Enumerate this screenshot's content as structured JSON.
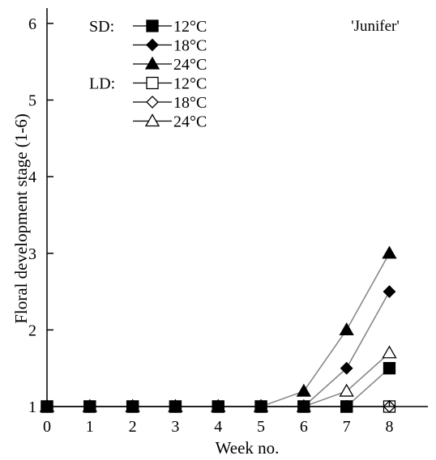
{
  "chart_data": {
    "type": "line",
    "title": "",
    "annotation": "'Junifer'",
    "xlabel": "Week no.",
    "ylabel": "Floral development stage (1-6)",
    "x": [
      0,
      1,
      2,
      3,
      4,
      5,
      6,
      7,
      8
    ],
    "xlim": [
      0,
      8.9
    ],
    "ylim": [
      1,
      6.2
    ],
    "xticks": [
      "0",
      "1",
      "2",
      "3",
      "4",
      "5",
      "6",
      "7",
      "8"
    ],
    "yticks": [
      "1",
      "2",
      "3",
      "4",
      "5",
      "6"
    ],
    "grid": false,
    "legend_position": "top-left",
    "legend_groups": [
      {
        "label": "SD:",
        "series": [
          0,
          1,
          2
        ]
      },
      {
        "label": "LD:",
        "series": [
          3,
          4,
          5
        ]
      }
    ],
    "series": [
      {
        "name": "12°C",
        "group": "SD",
        "marker": "square",
        "filled": true,
        "values": [
          1,
          1,
          1,
          1,
          1,
          1,
          1,
          1,
          1.5
        ]
      },
      {
        "name": "18°C",
        "group": "SD",
        "marker": "diamond",
        "filled": true,
        "values": [
          1,
          1,
          1,
          1,
          1,
          1,
          1,
          1.5,
          2.5
        ]
      },
      {
        "name": "24°C",
        "group": "SD",
        "marker": "triangle",
        "filled": true,
        "values": [
          1,
          1,
          1,
          1,
          1,
          1,
          1.2,
          2,
          3
        ]
      },
      {
        "name": "12°C",
        "group": "LD",
        "marker": "square",
        "filled": false,
        "values": [
          1,
          1,
          1,
          1,
          1,
          1,
          1,
          1,
          1
        ]
      },
      {
        "name": "18°C",
        "group": "LD",
        "marker": "diamond",
        "filled": false,
        "values": [
          1,
          1,
          1,
          1,
          1,
          1,
          1,
          1,
          1
        ]
      },
      {
        "name": "24°C",
        "group": "LD",
        "marker": "triangle",
        "filled": false,
        "values": [
          1,
          1,
          1,
          1,
          1,
          1,
          1,
          1.2,
          1.7
        ]
      }
    ],
    "colors": {
      "line": "#888888",
      "marker": "#000000",
      "axis": "#000000",
      "open_fill": "#ffffff"
    }
  }
}
